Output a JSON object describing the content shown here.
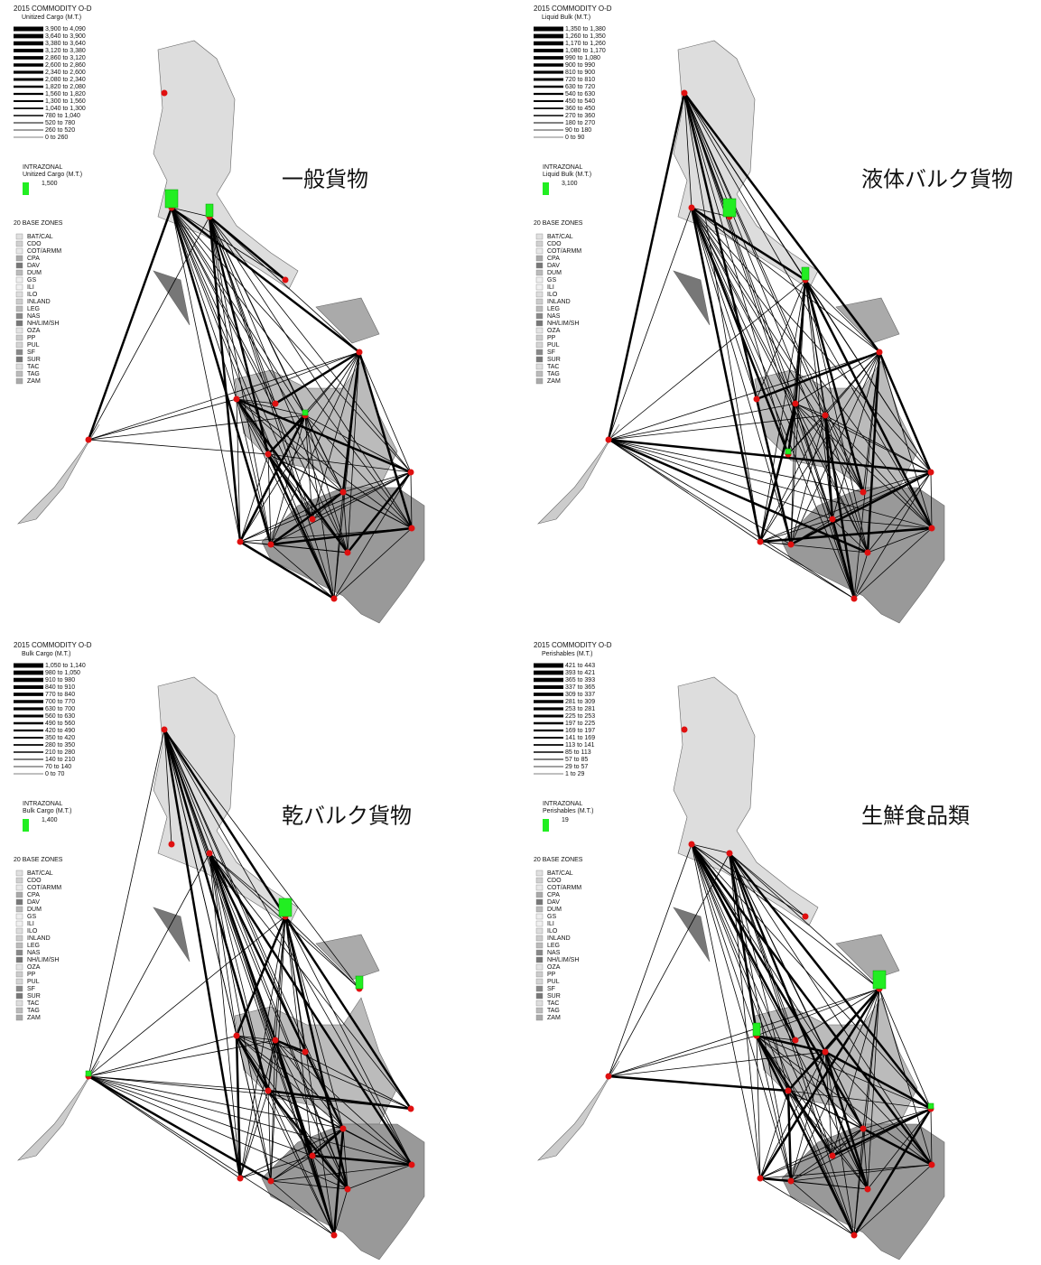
{
  "panels": [
    {
      "title": "2015 COMMODITY O-D",
      "subtitle": "Unitized Cargo (M.T.)",
      "ranges": [
        "3,900 to 4,090",
        "3,640 to 3,900",
        "3,380 to 3,640",
        "3,120 to 3,380",
        "2,860 to 3,120",
        "2,600 to 2,860",
        "2,340 to 2,600",
        "2,080 to 2,340",
        "1,820 to 2,080",
        "1,560 to 1,820",
        "1,300 to 1,560",
        "1,040 to 1,300",
        "780 to 1,040",
        "520 to 780",
        "260 to 520",
        "0 to 260"
      ],
      "intrazonal_title": "INTRAZONAL",
      "intrazonal_subtitle": "Unitized Cargo (M.T.)",
      "intrazonal_value": "1,500",
      "zones_title": "20 BASE ZONES",
      "label": "一般貨物"
    },
    {
      "title": "2015 COMMODITY O-D",
      "subtitle": "Liquid Bulk (M.T.)",
      "ranges": [
        "1,350 to 1,380",
        "1,260 to 1,350",
        "1,170 to 1,260",
        "1,080 to 1,170",
        "990 to 1,080",
        "900 to 990",
        "810 to 900",
        "720 to 810",
        "630 to 720",
        "540 to 630",
        "450 to 540",
        "360 to 450",
        "270 to 360",
        "180 to 270",
        "90 to 180",
        "0 to 90"
      ],
      "intrazonal_title": "INTRAZONAL",
      "intrazonal_subtitle": "Liquid Bulk (M.T.)",
      "intrazonal_value": "3,100",
      "zones_title": "20 BASE ZONES",
      "label": "液体バルク貨物"
    },
    {
      "title": "2015 COMMODITY O-D",
      "subtitle": "Bulk Cargo (M.T.)",
      "ranges": [
        "1,050 to 1,140",
        "980 to 1,050",
        "910 to 980",
        "840 to 910",
        "770 to 840",
        "700 to 770",
        "630 to 700",
        "560 to 630",
        "490 to 560",
        "420 to 490",
        "350 to 420",
        "280 to 350",
        "210 to 280",
        "140 to 210",
        "70 to 140",
        "0 to 70"
      ],
      "intrazonal_title": "INTRAZONAL",
      "intrazonal_subtitle": "Bulk Cargo (M.T.)",
      "intrazonal_value": "1,400",
      "zones_title": "20 BASE ZONES",
      "label": "乾バルク貨物"
    },
    {
      "title": "2015 COMMODITY O-D",
      "subtitle": "Perishables (M.T.)",
      "ranges": [
        "421 to 443",
        "393 to 421",
        "365 to 393",
        "337 to 365",
        "309 to 337",
        "281 to 309",
        "253 to 281",
        "225 to 253",
        "197 to 225",
        "169 to 197",
        "141 to 169",
        "113 to 141",
        "85 to 113",
        "57 to 85",
        "29 to 57",
        "1 to 29"
      ],
      "intrazonal_title": "INTRAZONAL",
      "intrazonal_subtitle": "Perishables (M.T.)",
      "intrazonal_value": "19",
      "zones_title": "20 BASE ZONES",
      "label": "生鮮食品類"
    }
  ],
  "base_zones": [
    "BAT/CAL",
    "CDO",
    "COT/ARMM",
    "CPA",
    "DAV",
    "DUM",
    "GS",
    "ILI",
    "ILO",
    "INLAND",
    "LEG",
    "NAS",
    "NH/LIM/SH",
    "OZA",
    "PP",
    "PUL",
    "SF",
    "SUR",
    "TAC",
    "TAG",
    "ZAM"
  ]
}
